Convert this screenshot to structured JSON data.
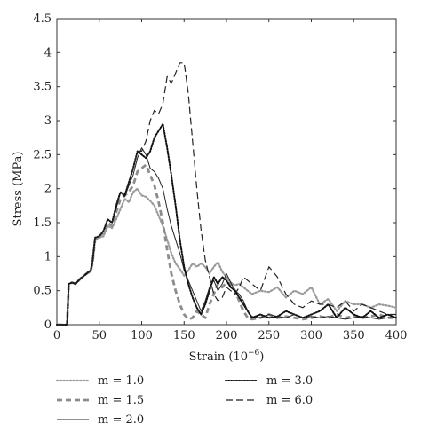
{
  "chart_data": {
    "type": "line",
    "title": "",
    "xlabel": "Strain (10",
    "xlabel_exp": "−6",
    "xlabel_close": ")",
    "ylabel": "Stress (MPa)",
    "xlim": [
      0,
      400
    ],
    "ylim": [
      0,
      4.5
    ],
    "xticks": [
      "0",
      "50",
      "100",
      "150",
      "200",
      "250",
      "300",
      "350",
      "400"
    ],
    "yticks": [
      "0",
      "0.5",
      "1",
      "1.5",
      "2",
      "2.5",
      "3",
      "3.5",
      "4",
      "4.5"
    ],
    "grid": false,
    "legend_position": "bottom",
    "series": [
      {
        "name": "m = 1.0",
        "style": "dotted-thick",
        "color": "#9a9a9a",
        "x": [
          0,
          12,
          14,
          18,
          22,
          28,
          35,
          40,
          42,
          45,
          50,
          55,
          60,
          65,
          70,
          75,
          80,
          85,
          90,
          95,
          100,
          105,
          110,
          115,
          120,
          125,
          130,
          135,
          140,
          145,
          150,
          155,
          160,
          165,
          170,
          175,
          180,
          185,
          190,
          195,
          200,
          205,
          210,
          215,
          220,
          225,
          230,
          240,
          250,
          260,
          270,
          280,
          290,
          300,
          310,
          320,
          330,
          340,
          350,
          360,
          370,
          380,
          390,
          400
        ],
        "y": [
          0,
          0,
          0.6,
          0.62,
          0.6,
          0.68,
          0.75,
          0.78,
          0.9,
          1.25,
          1.28,
          1.3,
          1.45,
          1.42,
          1.55,
          1.7,
          1.85,
          1.8,
          1.95,
          2.0,
          1.9,
          1.88,
          1.82,
          1.75,
          1.6,
          1.45,
          1.25,
          1.05,
          0.9,
          0.82,
          0.72,
          0.8,
          0.9,
          0.85,
          0.9,
          0.85,
          0.75,
          0.85,
          0.92,
          0.78,
          0.7,
          0.62,
          0.58,
          0.6,
          0.55,
          0.5,
          0.45,
          0.5,
          0.48,
          0.55,
          0.4,
          0.5,
          0.45,
          0.55,
          0.3,
          0.38,
          0.2,
          0.35,
          0.3,
          0.3,
          0.25,
          0.3,
          0.28,
          0.25
        ]
      },
      {
        "name": "m = 1.5",
        "style": "dashed-thick",
        "color": "#8c8c8c",
        "x": [
          0,
          12,
          14,
          18,
          22,
          28,
          35,
          40,
          42,
          45,
          50,
          55,
          60,
          65,
          70,
          75,
          80,
          85,
          90,
          95,
          100,
          105,
          110,
          115,
          120,
          125,
          130,
          135,
          140,
          145,
          150,
          155,
          160,
          165,
          170,
          175,
          180,
          185,
          190,
          195,
          200,
          205,
          210,
          215,
          220,
          225,
          230,
          240,
          250,
          260,
          270,
          280,
          290,
          300,
          310,
          320,
          330,
          340,
          350,
          360,
          370,
          380,
          390,
          400
        ],
        "y": [
          0,
          0,
          0.6,
          0.62,
          0.6,
          0.68,
          0.75,
          0.8,
          0.9,
          1.25,
          1.3,
          1.35,
          1.5,
          1.45,
          1.65,
          1.85,
          1.9,
          1.95,
          2.05,
          2.25,
          2.3,
          2.35,
          2.2,
          2.05,
          1.8,
          1.5,
          1.1,
          0.75,
          0.5,
          0.3,
          0.15,
          0.08,
          0.1,
          0.2,
          0.15,
          0.1,
          0.3,
          0.45,
          0.6,
          0.55,
          0.62,
          0.6,
          0.5,
          0.35,
          0.2,
          0.1,
          0.08,
          0.1,
          0.15,
          0.1,
          0.12,
          0.1,
          0.08,
          0.1,
          0.12,
          0.1,
          0.15,
          0.1,
          0.12,
          0.1,
          0.12,
          0.15,
          0.1,
          0.1
        ]
      },
      {
        "name": "m = 2.0",
        "style": "solid",
        "color": "#222222",
        "x": [
          0,
          12,
          14,
          18,
          22,
          28,
          35,
          40,
          42,
          45,
          50,
          55,
          60,
          65,
          70,
          75,
          80,
          85,
          90,
          95,
          100,
          105,
          110,
          115,
          120,
          125,
          130,
          135,
          140,
          145,
          150,
          155,
          160,
          165,
          170,
          175,
          180,
          185,
          190,
          195,
          200,
          205,
          210,
          215,
          220,
          225,
          230,
          240,
          250,
          260,
          270,
          280,
          290,
          300,
          310,
          320,
          330,
          340,
          350,
          360,
          370,
          380,
          390,
          400
        ],
        "y": [
          0,
          0,
          0.6,
          0.62,
          0.6,
          0.68,
          0.75,
          0.8,
          0.92,
          1.28,
          1.3,
          1.38,
          1.55,
          1.5,
          1.7,
          1.95,
          1.88,
          2.05,
          2.2,
          2.45,
          2.6,
          2.5,
          2.3,
          2.25,
          2.15,
          2.0,
          1.7,
          1.45,
          1.25,
          1.05,
          0.8,
          0.65,
          0.5,
          0.35,
          0.2,
          0.35,
          0.55,
          0.65,
          0.5,
          0.6,
          0.75,
          0.62,
          0.5,
          0.45,
          0.35,
          0.2,
          0.12,
          0.1,
          0.15,
          0.12,
          0.1,
          0.15,
          0.1,
          0.12,
          0.1,
          0.12,
          0.1,
          0.08,
          0.1,
          0.12,
          0.1,
          0.08,
          0.1,
          0.1
        ]
      },
      {
        "name": "m = 3.0",
        "style": "dotted-dense",
        "color": "#111111",
        "x": [
          0,
          12,
          14,
          18,
          22,
          28,
          35,
          40,
          42,
          45,
          50,
          55,
          60,
          65,
          70,
          75,
          80,
          85,
          90,
          95,
          100,
          105,
          110,
          115,
          120,
          125,
          130,
          135,
          140,
          145,
          150,
          155,
          160,
          165,
          170,
          175,
          180,
          185,
          190,
          195,
          200,
          205,
          210,
          215,
          220,
          225,
          230,
          240,
          250,
          260,
          270,
          280,
          290,
          300,
          310,
          320,
          330,
          340,
          350,
          360,
          370,
          380,
          390,
          400
        ],
        "y": [
          0,
          0,
          0.6,
          0.62,
          0.6,
          0.68,
          0.75,
          0.8,
          0.92,
          1.28,
          1.3,
          1.38,
          1.55,
          1.5,
          1.75,
          1.95,
          1.9,
          2.1,
          2.3,
          2.55,
          2.5,
          2.45,
          2.55,
          2.75,
          2.85,
          2.95,
          2.6,
          2.2,
          1.75,
          1.25,
          0.85,
          0.6,
          0.4,
          0.25,
          0.15,
          0.3,
          0.5,
          0.7,
          0.6,
          0.7,
          0.65,
          0.55,
          0.5,
          0.4,
          0.3,
          0.2,
          0.1,
          0.15,
          0.1,
          0.12,
          0.2,
          0.15,
          0.1,
          0.15,
          0.2,
          0.3,
          0.1,
          0.25,
          0.15,
          0.1,
          0.2,
          0.1,
          0.15,
          0.1
        ]
      },
      {
        "name": "m = 6.0",
        "style": "dashed-long",
        "color": "#222222",
        "x": [
          0,
          12,
          14,
          18,
          22,
          28,
          35,
          40,
          42,
          45,
          50,
          55,
          60,
          65,
          70,
          75,
          80,
          85,
          90,
          95,
          100,
          105,
          110,
          115,
          120,
          125,
          130,
          135,
          140,
          145,
          150,
          155,
          160,
          165,
          170,
          175,
          180,
          185,
          190,
          195,
          200,
          205,
          210,
          215,
          220,
          225,
          230,
          240,
          250,
          260,
          270,
          280,
          290,
          300,
          310,
          320,
          330,
          340,
          350,
          360,
          370,
          380,
          390,
          400
        ],
        "y": [
          0,
          0,
          0.6,
          0.62,
          0.6,
          0.68,
          0.75,
          0.8,
          0.92,
          1.28,
          1.3,
          1.38,
          1.55,
          1.5,
          1.75,
          1.95,
          1.9,
          2.1,
          2.3,
          2.55,
          2.55,
          2.7,
          3.0,
          3.15,
          3.1,
          3.25,
          3.65,
          3.55,
          3.7,
          3.85,
          3.85,
          3.4,
          2.7,
          2.0,
          1.4,
          0.95,
          0.7,
          0.45,
          0.35,
          0.4,
          0.55,
          0.5,
          0.45,
          0.55,
          0.7,
          0.65,
          0.6,
          0.5,
          0.85,
          0.7,
          0.45,
          0.3,
          0.25,
          0.35,
          0.3,
          0.3,
          0.25,
          0.35,
          0.2,
          0.3,
          0.25,
          0.2,
          0.15,
          0.15
        ]
      }
    ]
  },
  "legend": {
    "items": [
      {
        "label": "m = 1.0",
        "col": 0,
        "row": 0,
        "series": 0
      },
      {
        "label": "m = 3.0",
        "col": 1,
        "row": 0,
        "series": 3
      },
      {
        "label": "m = 1.5",
        "col": 0,
        "row": 1,
        "series": 1
      },
      {
        "label": "m = 6.0",
        "col": 1,
        "row": 1,
        "series": 4
      },
      {
        "label": "m = 2.0",
        "col": 0,
        "row": 2,
        "series": 2
      }
    ]
  }
}
